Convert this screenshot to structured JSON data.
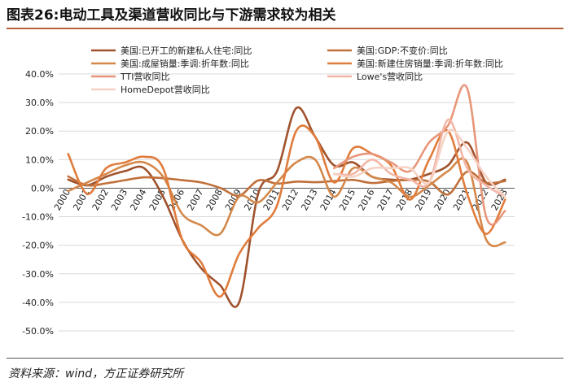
{
  "page": {
    "title": "图表26:电动工具及渠道营收同比与下游需求较为相关",
    "source": "资料来源：wind，方正证券研究所"
  },
  "chart_data": {
    "type": "line",
    "title": "图表26:电动工具及渠道营收同比与下游需求较为相关",
    "xlabel": "",
    "ylabel": "",
    "categories": [
      "2000",
      "2001",
      "2002",
      "2003",
      "2004",
      "2005",
      "2006",
      "2007",
      "2008",
      "2009",
      "2010",
      "2011",
      "2012",
      "2013",
      "2014",
      "2015",
      "2016",
      "2017",
      "2018",
      "2019",
      "2020",
      "2021",
      "2022",
      "2023"
    ],
    "ylim": [
      -50,
      40
    ],
    "yticks": [
      -50,
      -40,
      -30,
      -20,
      -10,
      0,
      10,
      20,
      30,
      40
    ],
    "ytick_format": "%",
    "legend_position": "top",
    "series": [
      {
        "name": "美国:已开工的新建私人住宅:同比",
        "color": "#a0522d",
        "points": [
          [
            0,
            3
          ],
          [
            1,
            1
          ],
          [
            2,
            4
          ],
          [
            3,
            6
          ],
          [
            4,
            7
          ],
          [
            5,
            -3
          ],
          [
            6,
            -18
          ],
          [
            7,
            -28
          ],
          [
            8,
            -34
          ],
          [
            9,
            -40
          ],
          [
            10,
            -2
          ],
          [
            11,
            6
          ],
          [
            12,
            28
          ],
          [
            13,
            18
          ],
          [
            14,
            8
          ],
          [
            15,
            9
          ],
          [
            16,
            4
          ],
          [
            17,
            3
          ],
          [
            18,
            3
          ],
          [
            19,
            5
          ],
          [
            20,
            8
          ],
          [
            21,
            16
          ],
          [
            22,
            2
          ],
          [
            23,
            3
          ]
        ]
      },
      {
        "name": "美国:GDP:不变价:同比",
        "color": "#c0703a",
        "points": [
          [
            0,
            4.1
          ],
          [
            1,
            1
          ],
          [
            2,
            1.7
          ],
          [
            3,
            2.8
          ],
          [
            4,
            3.8
          ],
          [
            5,
            3.5
          ],
          [
            6,
            2.8
          ],
          [
            7,
            2
          ],
          [
            8,
            0.1
          ],
          [
            9,
            -2.6
          ],
          [
            10,
            2.7
          ],
          [
            11,
            1.6
          ],
          [
            12,
            2.3
          ],
          [
            13,
            2.1
          ],
          [
            14,
            2.5
          ],
          [
            15,
            2.9
          ],
          [
            16,
            1.8
          ],
          [
            17,
            2.5
          ],
          [
            18,
            2.9
          ],
          [
            19,
            2.3
          ],
          [
            20,
            -2.2
          ],
          [
            21,
            5.8
          ],
          [
            22,
            1.9
          ],
          [
            23,
            2.5
          ]
        ]
      },
      {
        "name": "美国:成屋销量:季调:折年数:同比",
        "color": "#d4884a",
        "points": [
          [
            0,
            -1
          ],
          [
            1,
            2
          ],
          [
            2,
            5
          ],
          [
            3,
            8
          ],
          [
            4,
            9
          ],
          [
            5,
            4
          ],
          [
            6,
            -9
          ],
          [
            7,
            -13
          ],
          [
            8,
            -16
          ],
          [
            9,
            -3
          ],
          [
            10,
            -5
          ],
          [
            11,
            2
          ],
          [
            12,
            9
          ],
          [
            13,
            10
          ],
          [
            14,
            -3
          ],
          [
            15,
            7
          ],
          [
            16,
            4
          ],
          [
            17,
            2
          ],
          [
            18,
            -3
          ],
          [
            19,
            1
          ],
          [
            20,
            6
          ],
          [
            21,
            9
          ],
          [
            22,
            -18
          ],
          [
            23,
            -19
          ]
        ]
      },
      {
        "name": "美国:新建住房销量:季调:折年数:同比",
        "color": "#e07c3c",
        "points": [
          [
            0,
            12
          ],
          [
            1,
            -2
          ],
          [
            2,
            7
          ],
          [
            3,
            9
          ],
          [
            4,
            11
          ],
          [
            5,
            7
          ],
          [
            6,
            -18
          ],
          [
            7,
            -26
          ],
          [
            8,
            -38
          ],
          [
            9,
            -23
          ],
          [
            10,
            -14
          ],
          [
            11,
            -6
          ],
          [
            12,
            20
          ],
          [
            13,
            18
          ],
          [
            14,
            2
          ],
          [
            15,
            14
          ],
          [
            16,
            12
          ],
          [
            17,
            8
          ],
          [
            18,
            -4
          ],
          [
            19,
            10
          ],
          [
            20,
            20
          ],
          [
            21,
            -2
          ],
          [
            22,
            -16
          ],
          [
            23,
            -4
          ]
        ]
      },
      {
        "name": "TTI营收同比",
        "color": "#e8967a",
        "points": [
          [
            14,
            7
          ],
          [
            15,
            11
          ],
          [
            16,
            12
          ],
          [
            17,
            9
          ],
          [
            18,
            6
          ],
          [
            19,
            16
          ],
          [
            20,
            22
          ],
          [
            21,
            35
          ],
          [
            22,
            -10
          ],
          [
            23,
            -8
          ]
        ]
      },
      {
        "name": "Lowe's营收同比",
        "color": "#f2b6a6",
        "points": [
          [
            14,
            5
          ],
          [
            15,
            5
          ],
          [
            16,
            10
          ],
          [
            17,
            5
          ],
          [
            18,
            3
          ],
          [
            19,
            2
          ],
          [
            20,
            24
          ],
          [
            21,
            7
          ],
          [
            22,
            1
          ],
          [
            23,
            -3
          ]
        ]
      },
      {
        "name": "HomeDepot营收同比",
        "color": "#f5d2c4",
        "points": [
          [
            14,
            5
          ],
          [
            15,
            4
          ],
          [
            16,
            7
          ],
          [
            17,
            7
          ],
          [
            18,
            7
          ],
          [
            19,
            2
          ],
          [
            20,
            20
          ],
          [
            21,
            14
          ],
          [
            22,
            4
          ],
          [
            23,
            -3
          ]
        ]
      }
    ]
  }
}
